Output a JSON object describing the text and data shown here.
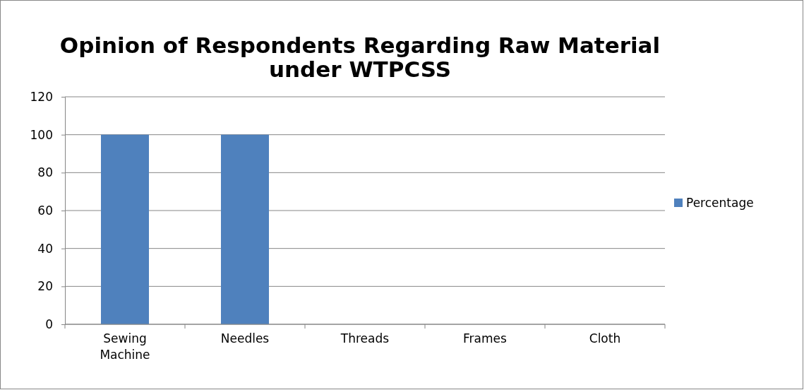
{
  "chart_data": {
    "type": "bar",
    "title": "Opinion of Respondents Regarding Raw Material under WTPCSS",
    "categories": [
      "Sewing Machine",
      "Needles",
      "Threads",
      "Frames",
      "Cloth"
    ],
    "series": [
      {
        "name": "Percentage",
        "color": "#4f81bd",
        "values": [
          100,
          100,
          0,
          0,
          0
        ]
      }
    ],
    "ylim": [
      0,
      120
    ],
    "yticks": [
      0,
      20,
      40,
      60,
      80,
      100,
      120
    ],
    "grid": "y",
    "legend": "right"
  }
}
